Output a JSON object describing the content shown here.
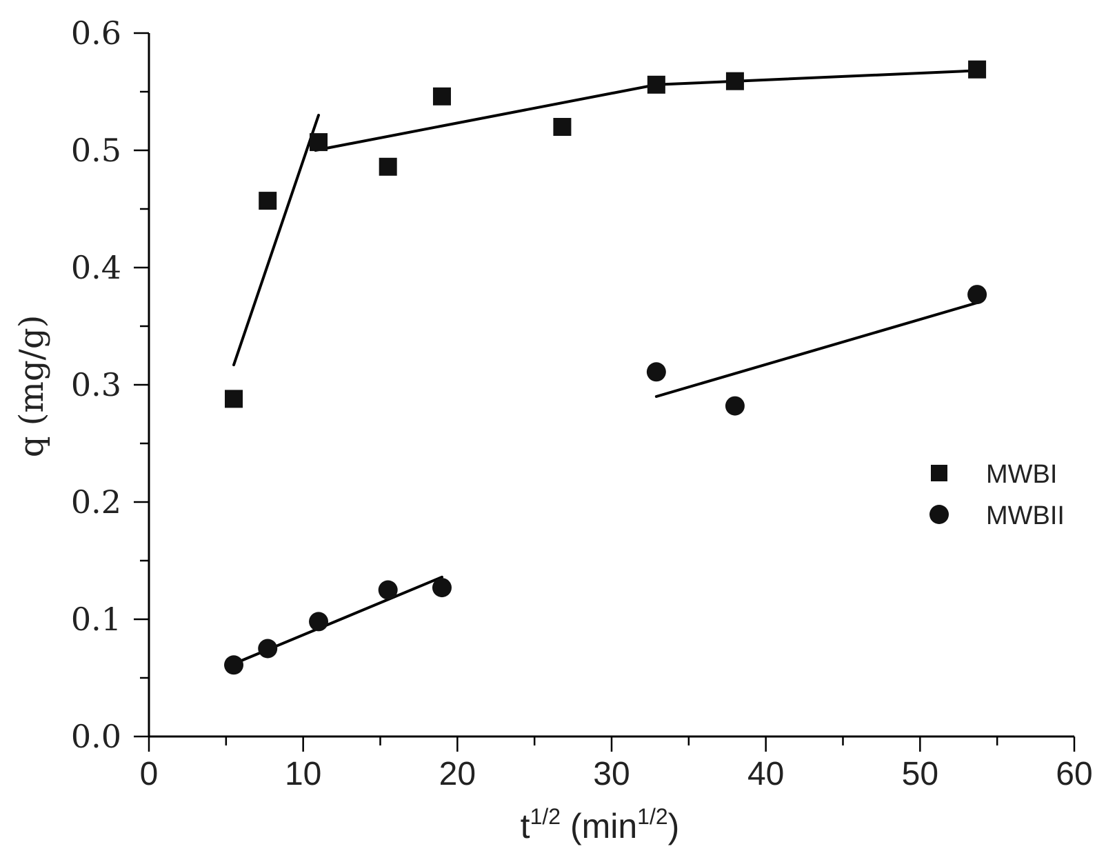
{
  "chart_data": {
    "type": "scatter",
    "title": "",
    "xlabel": {
      "base": "t",
      "sup": "1/2",
      "unit_open": " (min",
      "unit_sup": "1/2",
      "unit_close": ")"
    },
    "ylabel": "q (mg/g)",
    "xlim": [
      0,
      60
    ],
    "ylim": [
      0,
      0.6
    ],
    "x_ticks": [
      "0",
      "10",
      "20",
      "30",
      "40",
      "50",
      "60"
    ],
    "y_ticks": [
      "0.0",
      "0.1",
      "0.2",
      "0.3",
      "0.4",
      "0.5",
      "0.6"
    ],
    "legend_position": "right",
    "series": [
      {
        "name": "MWBI",
        "marker": "square",
        "color": "#111111",
        "x": [
          5.5,
          7.7,
          11.0,
          15.5,
          19.0,
          26.8,
          32.9,
          38.0,
          53.7
        ],
        "y": [
          0.288,
          0.457,
          0.507,
          0.486,
          0.546,
          0.52,
          0.556,
          0.559,
          0.569
        ],
        "fits": [
          {
            "x": [
              5.5,
              11.0
            ],
            "y": [
              0.317,
              0.53
            ]
          },
          {
            "x": [
              10.8,
              32.9
            ],
            "y": [
              0.5,
              0.556
            ]
          },
          {
            "x": [
              32.9,
              53.7
            ],
            "y": [
              0.556,
              0.568
            ]
          }
        ]
      },
      {
        "name": "MWBII",
        "marker": "circle",
        "color": "#111111",
        "x": [
          5.5,
          7.7,
          11.0,
          15.5,
          19.0,
          32.9,
          38.0,
          53.7
        ],
        "y": [
          0.061,
          0.075,
          0.098,
          0.125,
          0.127,
          0.311,
          0.282,
          0.377
        ],
        "fits": [
          {
            "x": [
              5.5,
              19.0
            ],
            "y": [
              0.062,
              0.136
            ]
          },
          {
            "x": [
              32.9,
              53.7
            ],
            "y": [
              0.29,
              0.37
            ]
          }
        ]
      }
    ]
  }
}
